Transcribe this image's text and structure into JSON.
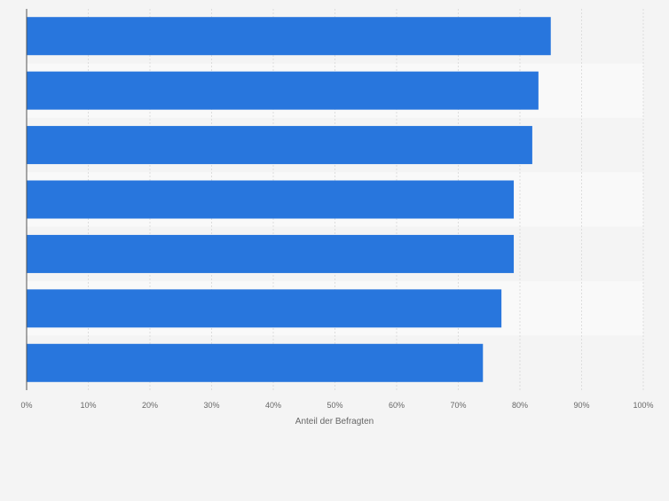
{
  "chart_data": {
    "type": "bar",
    "orientation": "horizontal",
    "categories": [
      "",
      "",
      "",
      "",
      "",
      "",
      ""
    ],
    "values": [
      85,
      83,
      82,
      79,
      79,
      77,
      74
    ],
    "xlim": [
      0,
      100
    ],
    "xticks": [
      "0%",
      "10%",
      "20%",
      "30%",
      "40%",
      "50%",
      "60%",
      "70%",
      "80%",
      "90%",
      "100%"
    ],
    "xlabel": "Anteil der Befragten",
    "ylabel": "",
    "title": "",
    "grid": "vertical",
    "legend": "none",
    "bar_color": "#2876dd",
    "band_colors": [
      "#f4f4f4",
      "#f9f9f9"
    ]
  }
}
